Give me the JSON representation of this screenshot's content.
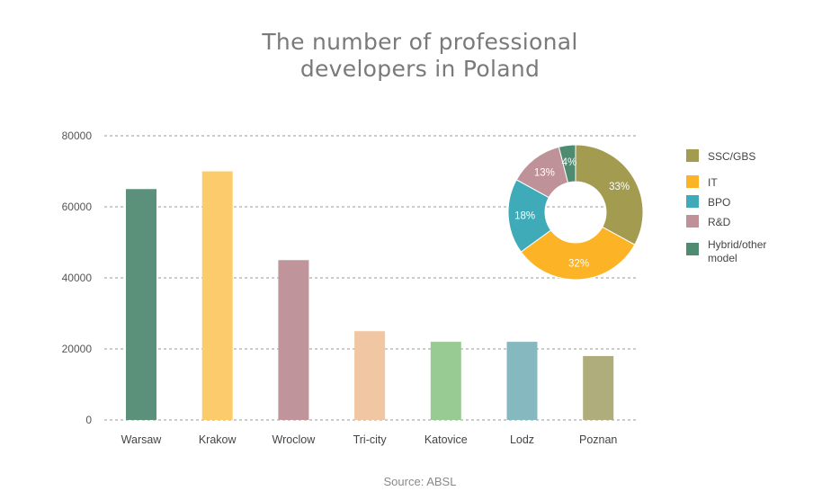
{
  "title_lines": [
    "The number of professional",
    "developers in Poland"
  ],
  "source": "Source: ABSL",
  "chart_data": [
    {
      "type": "bar",
      "categories": [
        "Warsaw",
        "Krakow",
        "Wroclow",
        "Tri-city",
        "Katovice",
        "Lodz",
        "Poznan"
      ],
      "values": [
        65000,
        70000,
        45000,
        25000,
        22000,
        22000,
        18000
      ],
      "colors": [
        "#5b917a",
        "#fccc6c",
        "#bf959b",
        "#f0c7a2",
        "#98cb94",
        "#86b8bf",
        "#b0ad7c"
      ],
      "ylim": [
        0,
        80000
      ],
      "yticks": [
        0,
        20000,
        40000,
        60000,
        80000
      ],
      "ytick_labels": [
        "0",
        "20000",
        "40000",
        "60000",
        "80000"
      ],
      "grid": true
    },
    {
      "type": "pie",
      "donut": true,
      "labels": [
        "SSC/GBS",
        "IT",
        "BPO",
        "R&D",
        "Hybrid/other model"
      ],
      "values": [
        33,
        32,
        18,
        13,
        4
      ],
      "value_labels": [
        "33%",
        "32%",
        "18%",
        "13%",
        "4%"
      ],
      "colors": [
        "#a39b4f",
        "#fcb326",
        "#3fabb8",
        "#bf929a",
        "#4f8b70"
      ],
      "legend_position": "right"
    }
  ]
}
